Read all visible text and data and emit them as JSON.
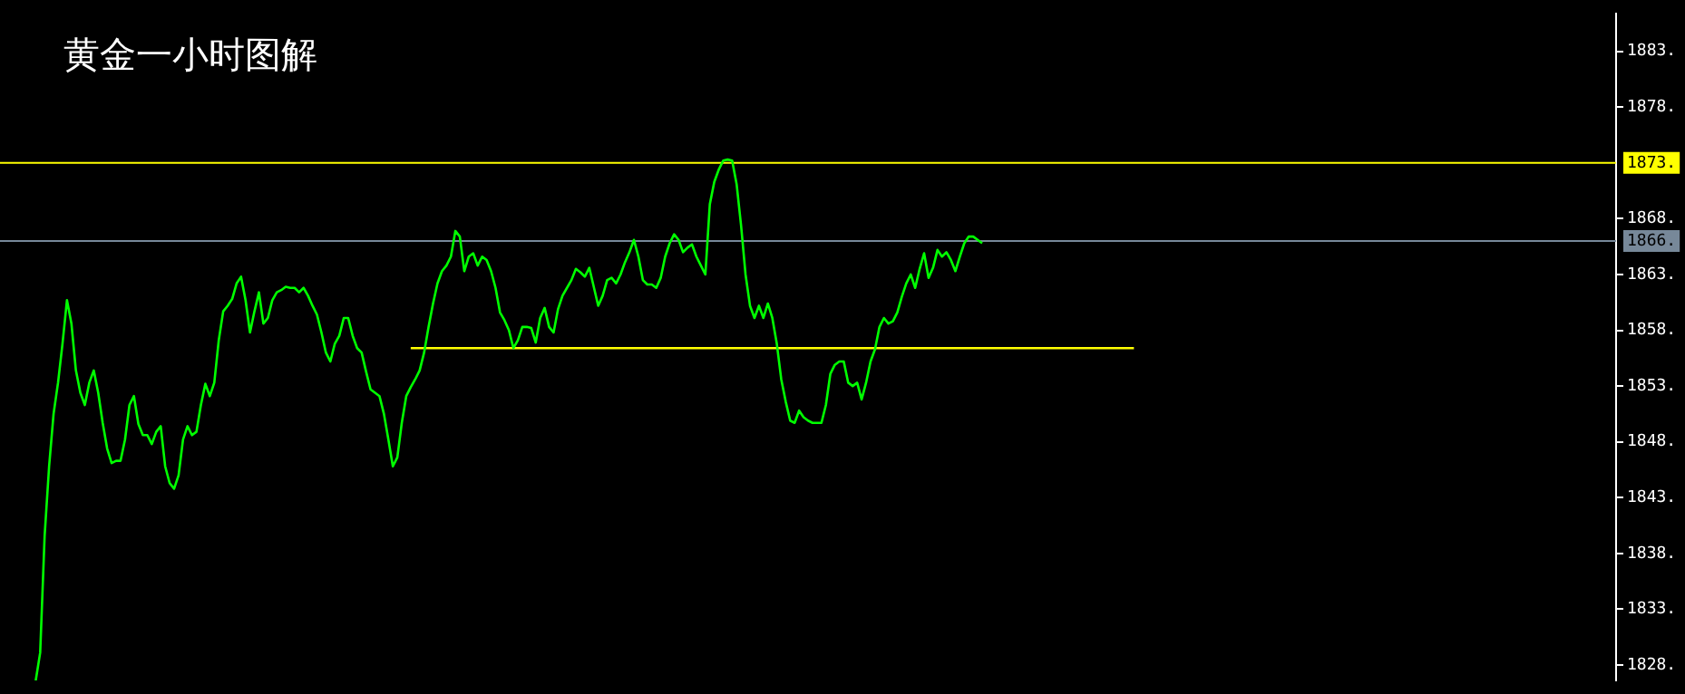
{
  "chart_data": {
    "type": "line",
    "title": "黄金一小时图解",
    "categories": [
      null,
      null,
      null,
      null,
      null,
      null,
      null,
      null,
      null,
      null,
      null,
      null,
      null,
      null,
      null,
      null,
      null,
      null,
      null,
      null,
      null,
      null,
      null,
      null,
      null,
      null,
      null,
      null,
      null,
      null,
      null,
      null,
      null,
      null,
      null,
      null,
      null,
      null,
      null,
      null,
      null,
      null,
      null,
      null,
      null,
      null,
      null,
      null,
      null,
      null,
      null,
      null,
      null,
      null,
      null,
      null,
      null,
      null,
      null,
      null,
      null,
      null,
      null,
      null,
      null,
      null,
      null,
      null,
      null,
      null,
      null,
      null,
      null,
      null,
      null,
      null,
      null,
      null,
      null,
      null,
      null,
      null,
      null,
      null,
      null,
      null,
      null,
      null,
      null,
      null,
      null,
      null,
      null,
      null,
      null,
      null,
      null,
      null,
      null,
      null,
      null,
      null,
      null,
      null,
      null,
      null,
      null,
      null,
      null,
      null,
      null,
      null,
      null,
      null,
      null,
      null,
      null,
      null,
      null,
      null,
      null,
      null,
      null,
      null,
      null,
      null,
      null,
      null,
      null,
      null,
      null,
      null,
      null,
      null,
      null,
      null,
      null,
      null,
      null,
      null,
      null,
      null,
      null,
      null,
      null,
      null,
      null,
      null,
      null,
      null,
      null,
      null,
      null,
      null,
      null,
      null,
      null,
      null,
      null,
      null,
      null,
      null,
      null,
      null,
      null,
      null,
      null,
      null,
      null,
      null,
      null,
      null,
      null,
      null,
      null,
      null,
      null,
      null,
      null,
      null,
      null,
      null,
      null,
      null,
      null,
      null,
      null,
      null,
      null,
      null,
      null,
      null,
      null,
      null,
      null,
      null,
      null,
      null,
      null,
      null,
      null,
      null,
      null,
      null,
      null,
      null,
      null,
      null,
      null,
      null,
      null,
      null,
      null,
      null,
      null,
      null,
      null,
      null,
      null,
      null,
      null,
      null,
      null,
      null,
      null,
      null,
      null,
      null,
      null,
      null,
      null,
      null,
      null,
      null,
      null,
      null,
      null,
      null,
      null,
      null,
      null,
      null,
      null,
      null,
      null,
      null,
      null,
      null,
      null,
      null,
      null,
      null,
      null,
      null,
      null,
      null,
      null,
      null,
      null,
      null,
      null,
      null,
      null,
      null,
      null,
      null,
      null,
      null,
      null,
      null,
      null,
      null,
      null,
      null,
      null,
      null,
      null,
      null,
      null,
      null,
      null,
      null,
      null,
      null,
      null,
      null,
      null,
      null,
      null,
      null,
      null,
      null,
      null,
      null,
      null,
      null,
      null,
      null,
      null,
      null,
      null,
      null,
      null,
      null,
      null,
      null,
      null,
      null,
      null,
      null,
      null,
      null,
      null,
      null,
      null,
      null,
      null,
      null,
      null,
      null,
      null,
      null,
      null,
      null,
      null,
      null,
      null,
      null,
      null,
      null,
      null,
      null,
      null,
      null,
      null,
      null,
      null,
      null,
      null,
      null,
      null,
      null,
      null,
      null,
      null,
      null,
      null,
      null,
      null,
      null,
      null,
      null,
      null,
      null,
      null,
      null,
      null,
      null,
      null,
      null,
      null,
      null,
      null
    ],
    "ylim": [
      1826.6,
      1886.4
    ],
    "yticks": [
      {
        "value": 1828,
        "label": "1828."
      },
      {
        "value": 1833,
        "label": "1833."
      },
      {
        "value": 1838,
        "label": "1838."
      },
      {
        "value": 1843,
        "label": "1843."
      },
      {
        "value": 1848,
        "label": "1848."
      },
      {
        "value": 1853,
        "label": "1853."
      },
      {
        "value": 1858,
        "label": "1858."
      },
      {
        "value": 1863,
        "label": "1863."
      },
      {
        "value": 1868,
        "label": "1868."
      },
      {
        "value": 1878,
        "label": "1878."
      },
      {
        "value": 1883,
        "label": "1883."
      }
    ],
    "tick_labels": "y",
    "series": [
      {
        "color": "#00ff00",
        "values": [
          null,
          null,
          null,
          null,
          null,
          null,
          null,
          null,
          1826.6,
          1829.1,
          1839.6,
          1845.8,
          1850.5,
          1853.3,
          1856.8,
          1860.7,
          1858.6,
          1854.4,
          1852.4,
          1851.3,
          1853.3,
          1854.4,
          1852.4,
          1849.7,
          1847.4,
          1846.1,
          1846.3,
          1846.3,
          1848.2,
          1851.3,
          1852.1,
          1849.6,
          1848.6,
          1848.6,
          1847.8,
          1848.9,
          1849.4,
          1845.8,
          1844.3,
          1843.8,
          1845.0,
          1848.2,
          1849.4,
          1848.6,
          1848.9,
          1851.3,
          1853.2,
          1852.1,
          1853.3,
          1857.1,
          1859.7,
          1860.2,
          1860.8,
          1862.2,
          1862.8,
          1860.7,
          1857.8,
          1859.7,
          1861.4,
          1858.6,
          1859.1,
          1860.7,
          1861.4,
          1861.6,
          1861.9,
          1861.8,
          1861.8,
          1861.4,
          1861.8,
          1861.1,
          1860.2,
          1859.4,
          1857.8,
          1856.0,
          1855.2,
          1856.8,
          1857.5,
          1859.1,
          1859.1,
          1857.5,
          1856.4,
          1856.0,
          1854.3,
          1852.7,
          1852.4,
          1852.1,
          1850.5,
          1848.2,
          1845.8,
          1846.6,
          1849.7,
          1852.1,
          1852.9,
          1853.6,
          1854.4,
          1856.0,
          1858.3,
          1860.4,
          1862.2,
          1863.3,
          1863.8,
          1864.6,
          1866.9,
          1866.4,
          1863.3,
          1864.6,
          1864.9,
          1863.8,
          1864.6,
          1864.3,
          1863.3,
          1861.8,
          1859.6,
          1858.9,
          1858.0,
          1856.4,
          1857.1,
          1858.3,
          1858.3,
          1858.2,
          1856.9,
          1859.1,
          1860.0,
          1858.3,
          1857.8,
          1859.9,
          1861.1,
          1861.8,
          1862.5,
          1863.5,
          1863.2,
          1862.8,
          1863.6,
          1861.9,
          1860.2,
          1861.1,
          1862.5,
          1862.7,
          1862.2,
          1863.0,
          1864.1,
          1865.0,
          1866.1,
          1864.6,
          1862.5,
          1862.1,
          1862.1,
          1861.8,
          1862.7,
          1864.6,
          1865.8,
          1866.6,
          1866.1,
          1865.0,
          1865.4,
          1865.7,
          1864.6,
          1863.8,
          1863.0,
          1869.3,
          1871.3,
          1872.4,
          1873.2,
          1873.3,
          1873.2,
          1871.1,
          1867.4,
          1863.0,
          1860.2,
          1859.1,
          1860.2,
          1859.1,
          1860.4,
          1859.1,
          1856.8,
          1853.6,
          1851.6,
          1849.9,
          1849.7,
          1850.8,
          1850.2,
          1849.9,
          1849.7,
          1849.7,
          1849.7,
          1851.3,
          1854.1,
          1854.9,
          1855.2,
          1855.2,
          1853.3,
          1853.0,
          1853.3,
          1851.8,
          1853.3,
          1855.2,
          1856.3,
          1858.3,
          1859.1,
          1858.6,
          1858.8,
          1859.6,
          1861.0,
          1862.2,
          1863.0,
          1861.8,
          1863.5,
          1864.9,
          1862.7,
          1863.6,
          1865.2,
          1864.6,
          1865.0,
          1864.3,
          1863.3,
          1864.6,
          1865.8,
          1866.4,
          1866.4,
          1866.1,
          1865.8,
          null,
          null,
          null,
          null,
          null,
          null,
          null,
          null,
          null,
          null,
          null,
          null,
          null,
          null,
          null,
          null,
          null,
          null,
          null,
          null,
          null,
          null,
          null,
          null,
          null,
          null,
          null,
          null,
          null,
          null,
          null,
          null,
          null,
          null,
          null,
          null,
          null,
          null,
          null,
          null,
          null,
          null,
          null,
          null,
          null,
          null,
          null,
          null,
          null,
          null,
          null,
          null,
          null,
          null,
          null,
          null,
          null,
          null,
          null,
          null,
          null,
          null,
          null,
          null,
          null,
          null,
          null,
          null,
          null,
          null,
          null,
          null,
          null,
          null,
          null,
          null,
          null,
          null,
          null,
          null,
          null,
          null,
          null,
          null,
          null,
          null,
          null,
          null,
          null,
          null,
          null,
          null,
          null,
          null,
          null,
          null,
          null,
          null,
          null,
          null,
          null,
          null,
          null,
          null,
          null,
          null,
          null,
          null,
          null,
          null,
          null,
          null,
          null,
          null,
          null,
          null,
          null,
          null,
          null,
          null,
          null,
          null,
          null,
          null,
          null,
          null,
          null,
          null,
          null,
          null,
          null,
          null,
          null,
          null,
          null,
          null,
          null,
          null,
          null,
          null,
          null,
          null
        ]
      },
      {
        "color": "#ffff00",
        "values": [
          null,
          null,
          null,
          null,
          null,
          null,
          null,
          null,
          null,
          null,
          null,
          null,
          null,
          null,
          null,
          null,
          null,
          null,
          null,
          null,
          null,
          null,
          null,
          null,
          null,
          null,
          null,
          null,
          null,
          null,
          null,
          null,
          null,
          null,
          null,
          null,
          null,
          null,
          null,
          null,
          null,
          null,
          null,
          null,
          null,
          null,
          null,
          null,
          null,
          null,
          null,
          null,
          null,
          null,
          null,
          null,
          null,
          null,
          null,
          null,
          null,
          null,
          null,
          null,
          null,
          null,
          null,
          null,
          null,
          null,
          null,
          null,
          null,
          null,
          null,
          null,
          null,
          null,
          null,
          null,
          null,
          null,
          null,
          null,
          null,
          null,
          null,
          null,
          null,
          null,
          null,
          null,
          1856.4,
          1856.4,
          1856.4,
          1856.4,
          1856.4,
          1856.4,
          1856.4,
          1856.4,
          1856.4,
          1856.4,
          1856.4,
          1856.4,
          1856.4,
          1856.4,
          1856.4,
          1856.4,
          1856.4,
          1856.4,
          1856.4,
          1856.4,
          1856.4,
          1856.4,
          1856.4,
          1856.4,
          1856.4,
          1856.4,
          1856.4,
          1856.4,
          1856.4,
          1856.4,
          1856.4,
          1856.4,
          1856.4,
          1856.4,
          1856.4,
          1856.4,
          1856.4,
          1856.4,
          1856.4,
          1856.4,
          1856.4,
          1856.4,
          1856.4,
          1856.4,
          1856.4,
          1856.4,
          1856.4,
          1856.4,
          1856.4,
          1856.4,
          1856.4,
          1856.4,
          1856.4,
          1856.4,
          1856.4,
          1856.4,
          1856.4,
          1856.4,
          1856.4,
          1856.4,
          1856.4,
          1856.4,
          1856.4,
          1856.4,
          1856.4,
          1856.4,
          1856.4,
          1856.4,
          1856.4,
          1856.4,
          1856.4,
          1856.4,
          1856.4,
          1856.4,
          1856.4,
          1856.4,
          1856.4,
          1856.4,
          1856.4,
          1856.4,
          1856.4,
          1856.4,
          1856.4,
          1856.4,
          1856.4,
          1856.4,
          1856.4,
          1856.4,
          1856.4,
          1856.4,
          1856.4,
          1856.4,
          1856.4,
          1856.4,
          1856.4,
          1856.4,
          1856.4,
          1856.4,
          1856.4,
          1856.4,
          1856.4,
          1856.4,
          1856.4,
          1856.4,
          1856.4,
          1856.4,
          1856.4,
          1856.4,
          1856.4,
          1856.4,
          1856.4,
          1856.4,
          1856.4,
          1856.4,
          1856.4,
          1856.4,
          1856.4,
          1856.4,
          1856.4,
          1856.4,
          1856.4,
          1856.4,
          1856.4,
          1856.4,
          1856.4,
          1856.4,
          1856.4,
          1856.4,
          1856.4,
          1856.4,
          1856.4,
          1856.4,
          1856.4,
          1856.4,
          1856.4,
          1856.4,
          1856.4,
          1856.4,
          1856.4,
          1856.4,
          1856.4,
          1856.4,
          1856.4,
          1856.4,
          1856.4,
          1856.4,
          1856.4,
          1856.4,
          1856.4,
          1856.4,
          1856.4,
          1856.4,
          1856.4,
          1856.4,
          1856.4,
          1856.4,
          1856.4,
          1856.4,
          1856.4,
          1856.4,
          1856.4,
          1856.4,
          1856.4,
          null,
          null,
          null,
          null,
          null,
          null,
          null,
          null,
          null,
          null,
          null,
          null,
          null,
          null,
          null,
          null,
          null,
          null,
          null,
          null,
          null,
          null,
          null,
          null,
          null,
          null,
          null,
          null,
          null,
          null,
          null,
          null,
          null,
          null,
          null,
          null,
          null,
          null,
          null,
          null,
          null,
          null,
          null,
          null,
          null,
          null,
          null,
          null,
          null,
          null,
          null,
          null,
          null,
          null,
          null,
          null,
          null,
          null,
          null,
          null,
          null,
          null,
          null,
          null,
          null,
          null,
          null,
          null,
          null,
          null,
          null,
          null,
          null,
          null,
          null,
          null,
          null,
          null,
          null,
          null,
          null,
          null,
          null,
          null,
          null,
          null,
          null,
          null,
          null,
          null,
          null,
          null,
          null,
          null,
          null,
          null,
          null,
          null,
          null,
          null,
          null,
          null,
          null,
          null,
          null,
          null,
          null,
          null
        ]
      }
    ],
    "ref_lines": [
      {
        "axis": "y",
        "value": 1873,
        "label": "1873.",
        "color": "#ffff00"
      },
      {
        "axis": "y",
        "value": 1866,
        "label": "1866.",
        "color": "#778899"
      }
    ]
  }
}
